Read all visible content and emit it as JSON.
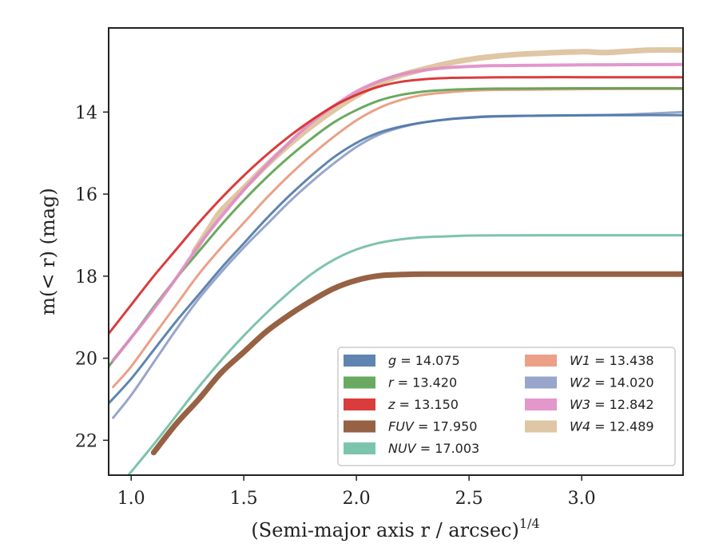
{
  "chart_data": {
    "type": "line",
    "xlabel": "(Semi-major axis r / arcsec)",
    "xlabel_power": "1/4",
    "ylabel": "m(< r) (mag)",
    "xlim": [
      0.9,
      3.45
    ],
    "ylim": [
      22.85,
      11.95
    ],
    "y_inverted": true,
    "grid": false,
    "legend_position": "lower-right",
    "x_ticks": [
      {
        "value": 1.0,
        "label": "1.0"
      },
      {
        "value": 1.5,
        "label": "1.5"
      },
      {
        "value": 2.0,
        "label": "2.0"
      },
      {
        "value": 2.5,
        "label": "2.5"
      },
      {
        "value": 3.0,
        "label": "3.0"
      }
    ],
    "y_ticks": [
      {
        "value": 14,
        "label": "14"
      },
      {
        "value": 16,
        "label": "16"
      },
      {
        "value": 18,
        "label": "18"
      },
      {
        "value": 20,
        "label": "20"
      },
      {
        "value": 22,
        "label": "22"
      }
    ],
    "series": [
      {
        "name": "g",
        "legend_label": "g = 14.075",
        "legend_italic": "g",
        "legend_value": " = 14.075",
        "color": "#4c78a8",
        "width": 3,
        "x": [
          0.9,
          1.0,
          1.1,
          1.2,
          1.3,
          1.4,
          1.5,
          1.6,
          1.7,
          1.8,
          1.9,
          2.0,
          2.1,
          2.2,
          2.3,
          2.4,
          2.5,
          2.6,
          2.8,
          3.0,
          3.2,
          3.45
        ],
        "y": [
          21.1,
          20.5,
          19.8,
          19.1,
          18.45,
          17.8,
          17.2,
          16.6,
          16.05,
          15.55,
          15.1,
          14.75,
          14.5,
          14.35,
          14.25,
          14.18,
          14.14,
          14.11,
          14.09,
          14.08,
          14.075,
          14.075
        ]
      },
      {
        "name": "r",
        "legend_label": "r = 13.420",
        "legend_italic": "r",
        "legend_value": " = 13.420",
        "color": "#59a14f",
        "width": 3,
        "x": [
          0.9,
          1.0,
          1.1,
          1.2,
          1.3,
          1.4,
          1.5,
          1.6,
          1.7,
          1.8,
          1.9,
          2.0,
          2.1,
          2.2,
          2.3,
          2.4,
          2.5,
          2.6,
          2.8,
          3.0,
          3.2,
          3.45
        ],
        "y": [
          20.2,
          19.5,
          18.75,
          18.05,
          17.4,
          16.75,
          16.15,
          15.6,
          15.1,
          14.65,
          14.25,
          13.95,
          13.72,
          13.58,
          13.5,
          13.46,
          13.44,
          13.43,
          13.425,
          13.42,
          13.42,
          13.42
        ]
      },
      {
        "name": "z",
        "legend_label": "z = 13.150",
        "legend_italic": "z",
        "legend_value": " = 13.150",
        "color": "#d62728",
        "width": 3,
        "x": [
          0.9,
          1.0,
          1.1,
          1.2,
          1.3,
          1.4,
          1.5,
          1.6,
          1.7,
          1.8,
          1.9,
          2.0,
          2.1,
          2.2,
          2.3,
          2.4,
          2.5,
          2.6,
          2.8,
          3.0,
          3.2,
          3.45
        ],
        "y": [
          19.4,
          18.7,
          18.0,
          17.35,
          16.7,
          16.1,
          15.55,
          15.05,
          14.6,
          14.2,
          13.85,
          13.58,
          13.38,
          13.26,
          13.2,
          13.17,
          13.16,
          13.155,
          13.15,
          13.15,
          13.15,
          13.15
        ]
      },
      {
        "name": "FUV",
        "legend_label": "FUV = 17.950",
        "legend_italic": "FUV",
        "legend_value": " = 17.950",
        "color": "#8c5030",
        "width": 7,
        "x": [
          1.1,
          1.2,
          1.3,
          1.4,
          1.5,
          1.6,
          1.7,
          1.8,
          1.9,
          2.0,
          2.1,
          2.2,
          2.3,
          2.43,
          2.7,
          3.0,
          3.45
        ],
        "y": [
          22.3,
          21.6,
          21.0,
          20.35,
          19.85,
          19.35,
          18.95,
          18.6,
          18.3,
          18.1,
          17.99,
          17.96,
          17.95,
          17.95,
          17.95,
          17.95,
          17.95
        ]
      },
      {
        "name": "NUV",
        "legend_label": "NUV = 17.003",
        "legend_italic": "NUV",
        "legend_value": " = 17.003",
        "color": "#6fbea3",
        "width": 3,
        "x": [
          0.98,
          1.1,
          1.2,
          1.3,
          1.4,
          1.5,
          1.6,
          1.7,
          1.8,
          1.9,
          2.0,
          2.1,
          2.2,
          2.3,
          2.4,
          2.5,
          2.7,
          3.0,
          3.2,
          3.45
        ],
        "y": [
          22.9,
          22.1,
          21.4,
          20.7,
          20.05,
          19.45,
          18.9,
          18.4,
          17.95,
          17.6,
          17.35,
          17.19,
          17.1,
          17.05,
          17.03,
          17.01,
          17.005,
          17.003,
          17.003,
          17.003
        ]
      },
      {
        "name": "W1",
        "legend_label": "W1 = 13.438",
        "legend_italic": "W1",
        "legend_value": " = 13.438",
        "color": "#e9967a",
        "width": 3,
        "x": [
          0.92,
          1.0,
          1.1,
          1.2,
          1.3,
          1.4,
          1.5,
          1.6,
          1.7,
          1.8,
          1.9,
          2.0,
          2.1,
          2.2,
          2.3,
          2.4,
          2.5,
          2.6,
          2.8,
          3.0,
          3.2,
          3.45
        ],
        "y": [
          20.7,
          20.2,
          19.45,
          18.7,
          17.95,
          17.3,
          16.7,
          16.1,
          15.55,
          15.05,
          14.6,
          14.2,
          13.9,
          13.7,
          13.58,
          13.52,
          13.48,
          13.46,
          13.45,
          13.44,
          13.438,
          13.438
        ]
      },
      {
        "name": "W2",
        "legend_label": "W2 = 14.020",
        "legend_italic": "W2",
        "legend_value": " = 14.020",
        "color": "#8c9cc4",
        "width": 3,
        "x": [
          0.92,
          1.0,
          1.1,
          1.2,
          1.3,
          1.4,
          1.5,
          1.6,
          1.7,
          1.8,
          1.9,
          2.0,
          2.1,
          2.2,
          2.3,
          2.4,
          2.5,
          2.6,
          2.8,
          3.0,
          3.2,
          3.45
        ],
        "y": [
          21.45,
          20.9,
          20.1,
          19.3,
          18.55,
          17.9,
          17.3,
          16.75,
          16.2,
          15.7,
          15.25,
          14.85,
          14.55,
          14.37,
          14.25,
          14.18,
          14.13,
          14.1,
          14.09,
          14.08,
          14.06,
          14.0
        ]
      },
      {
        "name": "W3",
        "legend_label": "W3 = 12.842",
        "legend_italic": "W3",
        "legend_value": " = 12.842",
        "color": "#e08cc4",
        "width": 4,
        "x": [
          0.92,
          1.0,
          1.1,
          1.2,
          1.3,
          1.4,
          1.5,
          1.6,
          1.7,
          1.8,
          1.9,
          2.0,
          2.1,
          2.2,
          2.3,
          2.4,
          2.5,
          2.6,
          2.8,
          3.0,
          3.2,
          3.45
        ],
        "y": [
          20.05,
          19.5,
          18.8,
          18.05,
          17.25,
          16.55,
          15.9,
          15.3,
          14.75,
          14.25,
          13.85,
          13.5,
          13.25,
          13.08,
          12.98,
          12.92,
          12.89,
          12.87,
          12.86,
          12.85,
          12.845,
          12.842
        ]
      },
      {
        "name": "W4",
        "legend_label": "W4 = 12.489",
        "legend_italic": "W4",
        "legend_value": " = 12.489",
        "color": "#dcc09a",
        "width": 7,
        "x": [
          1.28,
          1.35,
          1.4,
          1.5,
          1.6,
          1.7,
          1.8,
          1.9,
          2.0,
          2.1,
          2.2,
          2.3,
          2.4,
          2.5,
          2.6,
          2.7,
          2.8,
          3.0,
          3.1,
          3.2,
          3.3,
          3.45
        ],
        "y": [
          17.4,
          16.8,
          16.4,
          15.85,
          15.3,
          14.8,
          14.35,
          13.95,
          13.6,
          13.3,
          13.1,
          12.95,
          12.82,
          12.72,
          12.65,
          12.6,
          12.57,
          12.53,
          12.55,
          12.52,
          12.49,
          12.49
        ]
      }
    ]
  }
}
